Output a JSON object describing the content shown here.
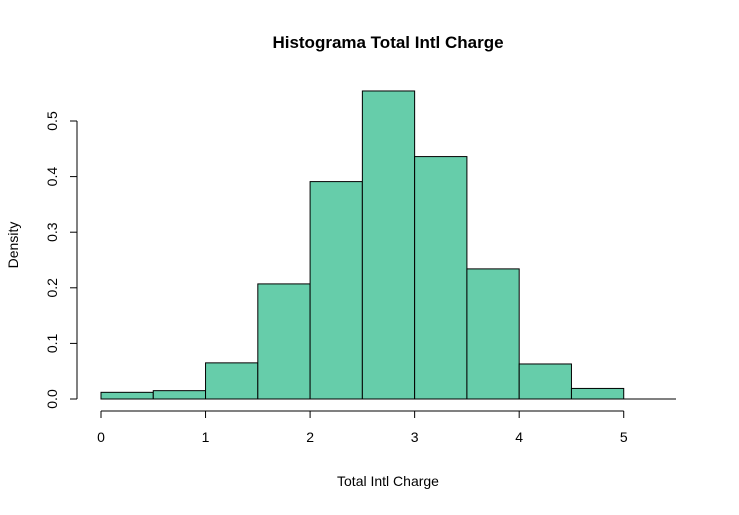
{
  "chart_data": {
    "type": "bar",
    "title": "Histograma Total Intl Charge",
    "xlabel": "Total Intl Charge",
    "ylabel": "Density",
    "bin_edges": [
      0,
      0.5,
      1,
      1.5,
      2,
      2.5,
      3,
      3.5,
      4,
      4.5,
      5
    ],
    "values": [
      0.012,
      0.015,
      0.065,
      0.207,
      0.391,
      0.554,
      0.436,
      0.234,
      0.063,
      0.019
    ],
    "xlim": [
      0,
      5.5
    ],
    "ylim": [
      0,
      0.55
    ],
    "x_ticks": [
      0,
      1,
      2,
      3,
      4,
      5
    ],
    "x_tick_labels": [
      "0",
      "1",
      "2",
      "3",
      "4",
      "5"
    ],
    "y_ticks": [
      0,
      0.1,
      0.2,
      0.3,
      0.4,
      0.5
    ],
    "y_tick_labels": [
      "0.0",
      "0.1",
      "0.2",
      "0.3",
      "0.4",
      "0.5"
    ],
    "grid": false,
    "colors": {
      "bar_fill": "#66CDAA",
      "bar_stroke": "#000000",
      "axis": "#000000"
    }
  }
}
